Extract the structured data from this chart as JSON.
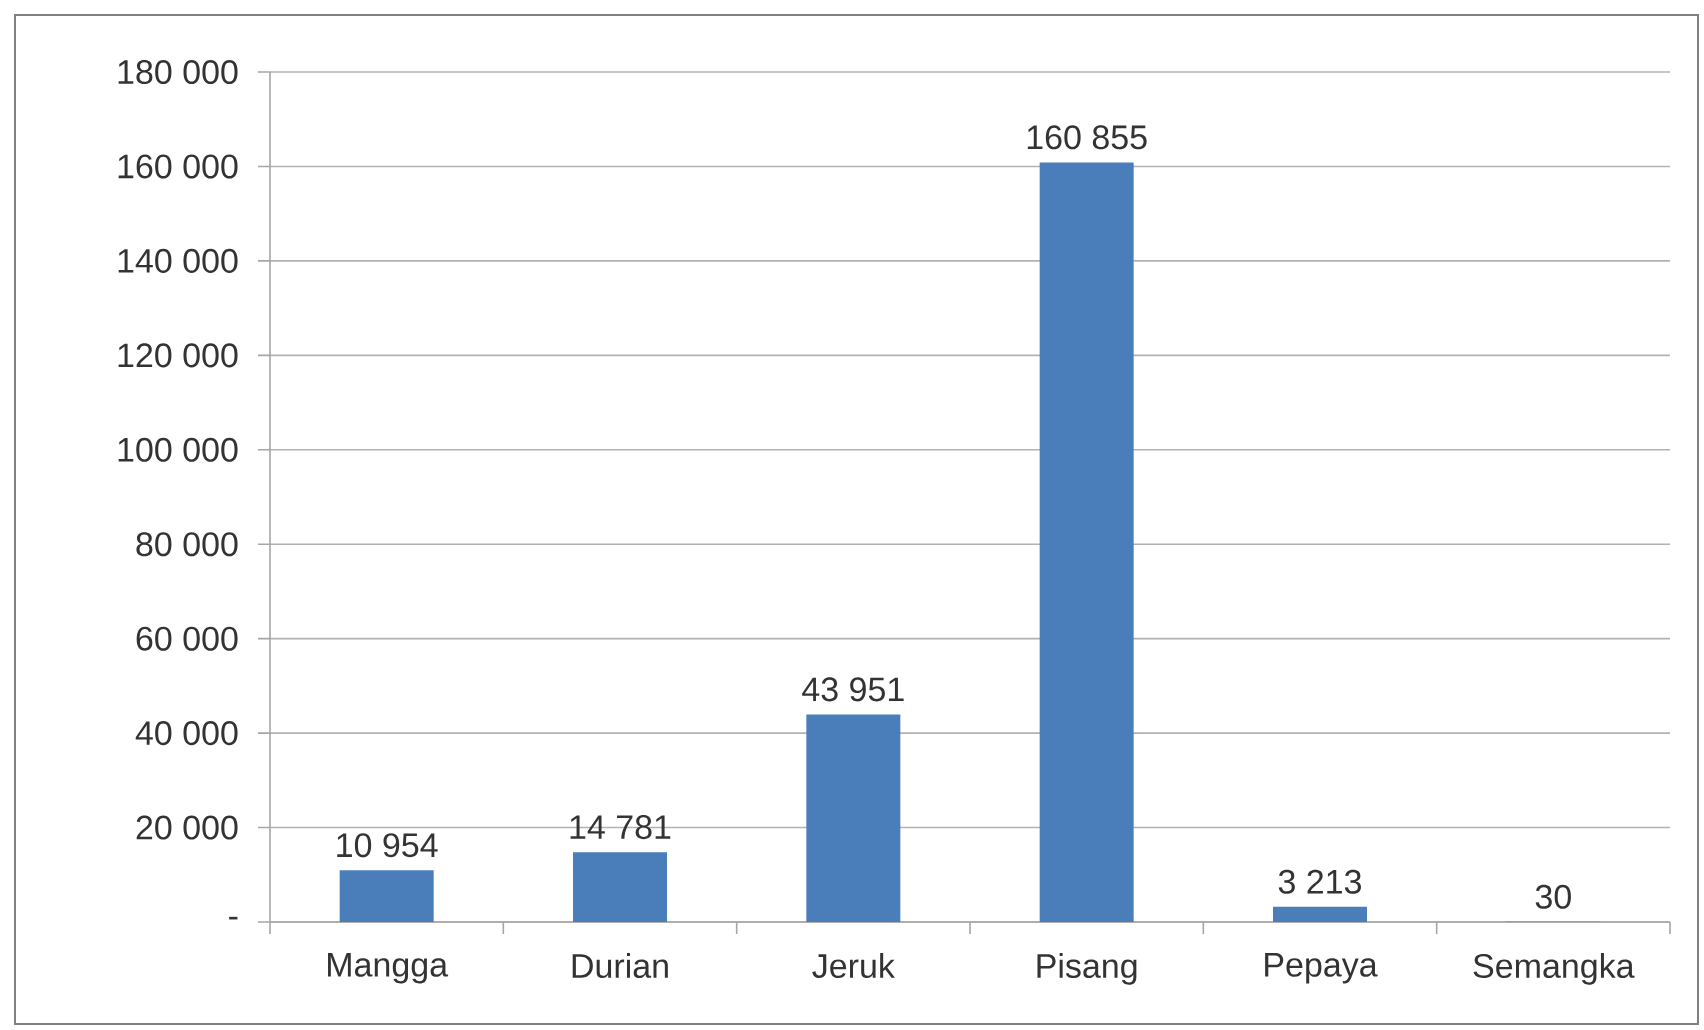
{
  "chart_data": {
    "type": "bar",
    "categories": [
      "Mangga",
      "Durian",
      "Jeruk",
      "Pisang",
      "Pepaya",
      "Semangka"
    ],
    "values": [
      10954,
      14781,
      43951,
      160855,
      3213,
      30
    ],
    "value_labels": [
      "10 954",
      "14 781",
      "43 951",
      "160 855",
      "3 213",
      "30"
    ],
    "color": "#4a7ebb",
    "ylim": [
      0,
      180000
    ],
    "yticks": [
      {
        "value": 0,
        "label": "-"
      },
      {
        "value": 20000,
        "label": "20 000"
      },
      {
        "value": 40000,
        "label": "40 000"
      },
      {
        "value": 60000,
        "label": "60 000"
      },
      {
        "value": 80000,
        "label": "80 000"
      },
      {
        "value": 100000,
        "label": "100 000"
      },
      {
        "value": 120000,
        "label": "120 000"
      },
      {
        "value": 140000,
        "label": "140 000"
      },
      {
        "value": 160000,
        "label": "160 000"
      },
      {
        "value": 180000,
        "label": "180 000"
      }
    ],
    "grid": "y"
  }
}
